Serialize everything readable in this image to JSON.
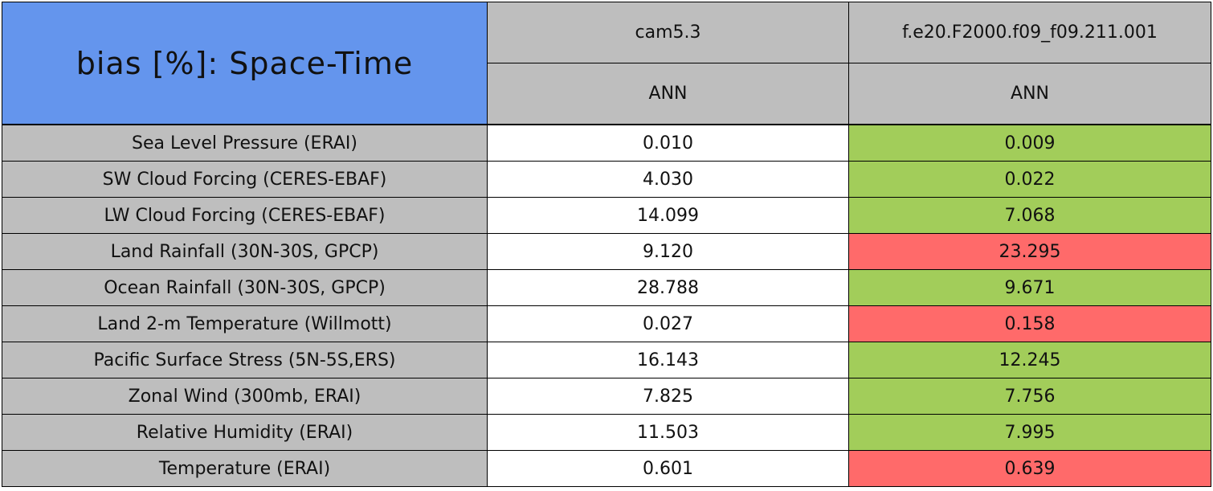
{
  "table": {
    "title": "bias [%]: Space-Time",
    "title_color": "#6495ed",
    "header_color": "#bebebe",
    "label_color": "#bebebe",
    "columns": [
      {
        "name": "cam5.3",
        "season": "ANN"
      },
      {
        "name": "f.e20.F2000.f09_f09.211.001",
        "season": "ANN"
      }
    ],
    "rows": [
      {
        "label": "Sea Level Pressure (ERAI)",
        "values": [
          "0.010",
          "0.009"
        ],
        "fills": [
          "#ffffff",
          "#a2cd5a"
        ]
      },
      {
        "label": "SW Cloud Forcing (CERES-EBAF)",
        "values": [
          "4.030",
          "0.022"
        ],
        "fills": [
          "#ffffff",
          "#a2cd5a"
        ]
      },
      {
        "label": "LW Cloud Forcing (CERES-EBAF)",
        "values": [
          "14.099",
          "7.068"
        ],
        "fills": [
          "#ffffff",
          "#a2cd5a"
        ]
      },
      {
        "label": "Land Rainfall (30N-30S, GPCP)",
        "values": [
          "9.120",
          "23.295"
        ],
        "fills": [
          "#ffffff",
          "#ff6a6a"
        ]
      },
      {
        "label": "Ocean Rainfall (30N-30S, GPCP)",
        "values": [
          "28.788",
          "9.671"
        ],
        "fills": [
          "#ffffff",
          "#a2cd5a"
        ]
      },
      {
        "label": "Land 2-m Temperature (Willmott)",
        "values": [
          "0.027",
          "0.158"
        ],
        "fills": [
          "#ffffff",
          "#ff6a6a"
        ]
      },
      {
        "label": "Pacific Surface Stress (5N-5S,ERS)",
        "values": [
          "16.143",
          "12.245"
        ],
        "fills": [
          "#ffffff",
          "#a2cd5a"
        ]
      },
      {
        "label": "Zonal Wind (300mb, ERAI)",
        "values": [
          "7.825",
          "7.756"
        ],
        "fills": [
          "#ffffff",
          "#a2cd5a"
        ]
      },
      {
        "label": "Relative Humidity (ERAI)",
        "values": [
          "11.503",
          "7.995"
        ],
        "fills": [
          "#ffffff",
          "#a2cd5a"
        ]
      },
      {
        "label": "Temperature (ERAI)",
        "values": [
          "0.601",
          "0.639"
        ],
        "fills": [
          "#ffffff",
          "#ff6a6a"
        ]
      }
    ]
  }
}
